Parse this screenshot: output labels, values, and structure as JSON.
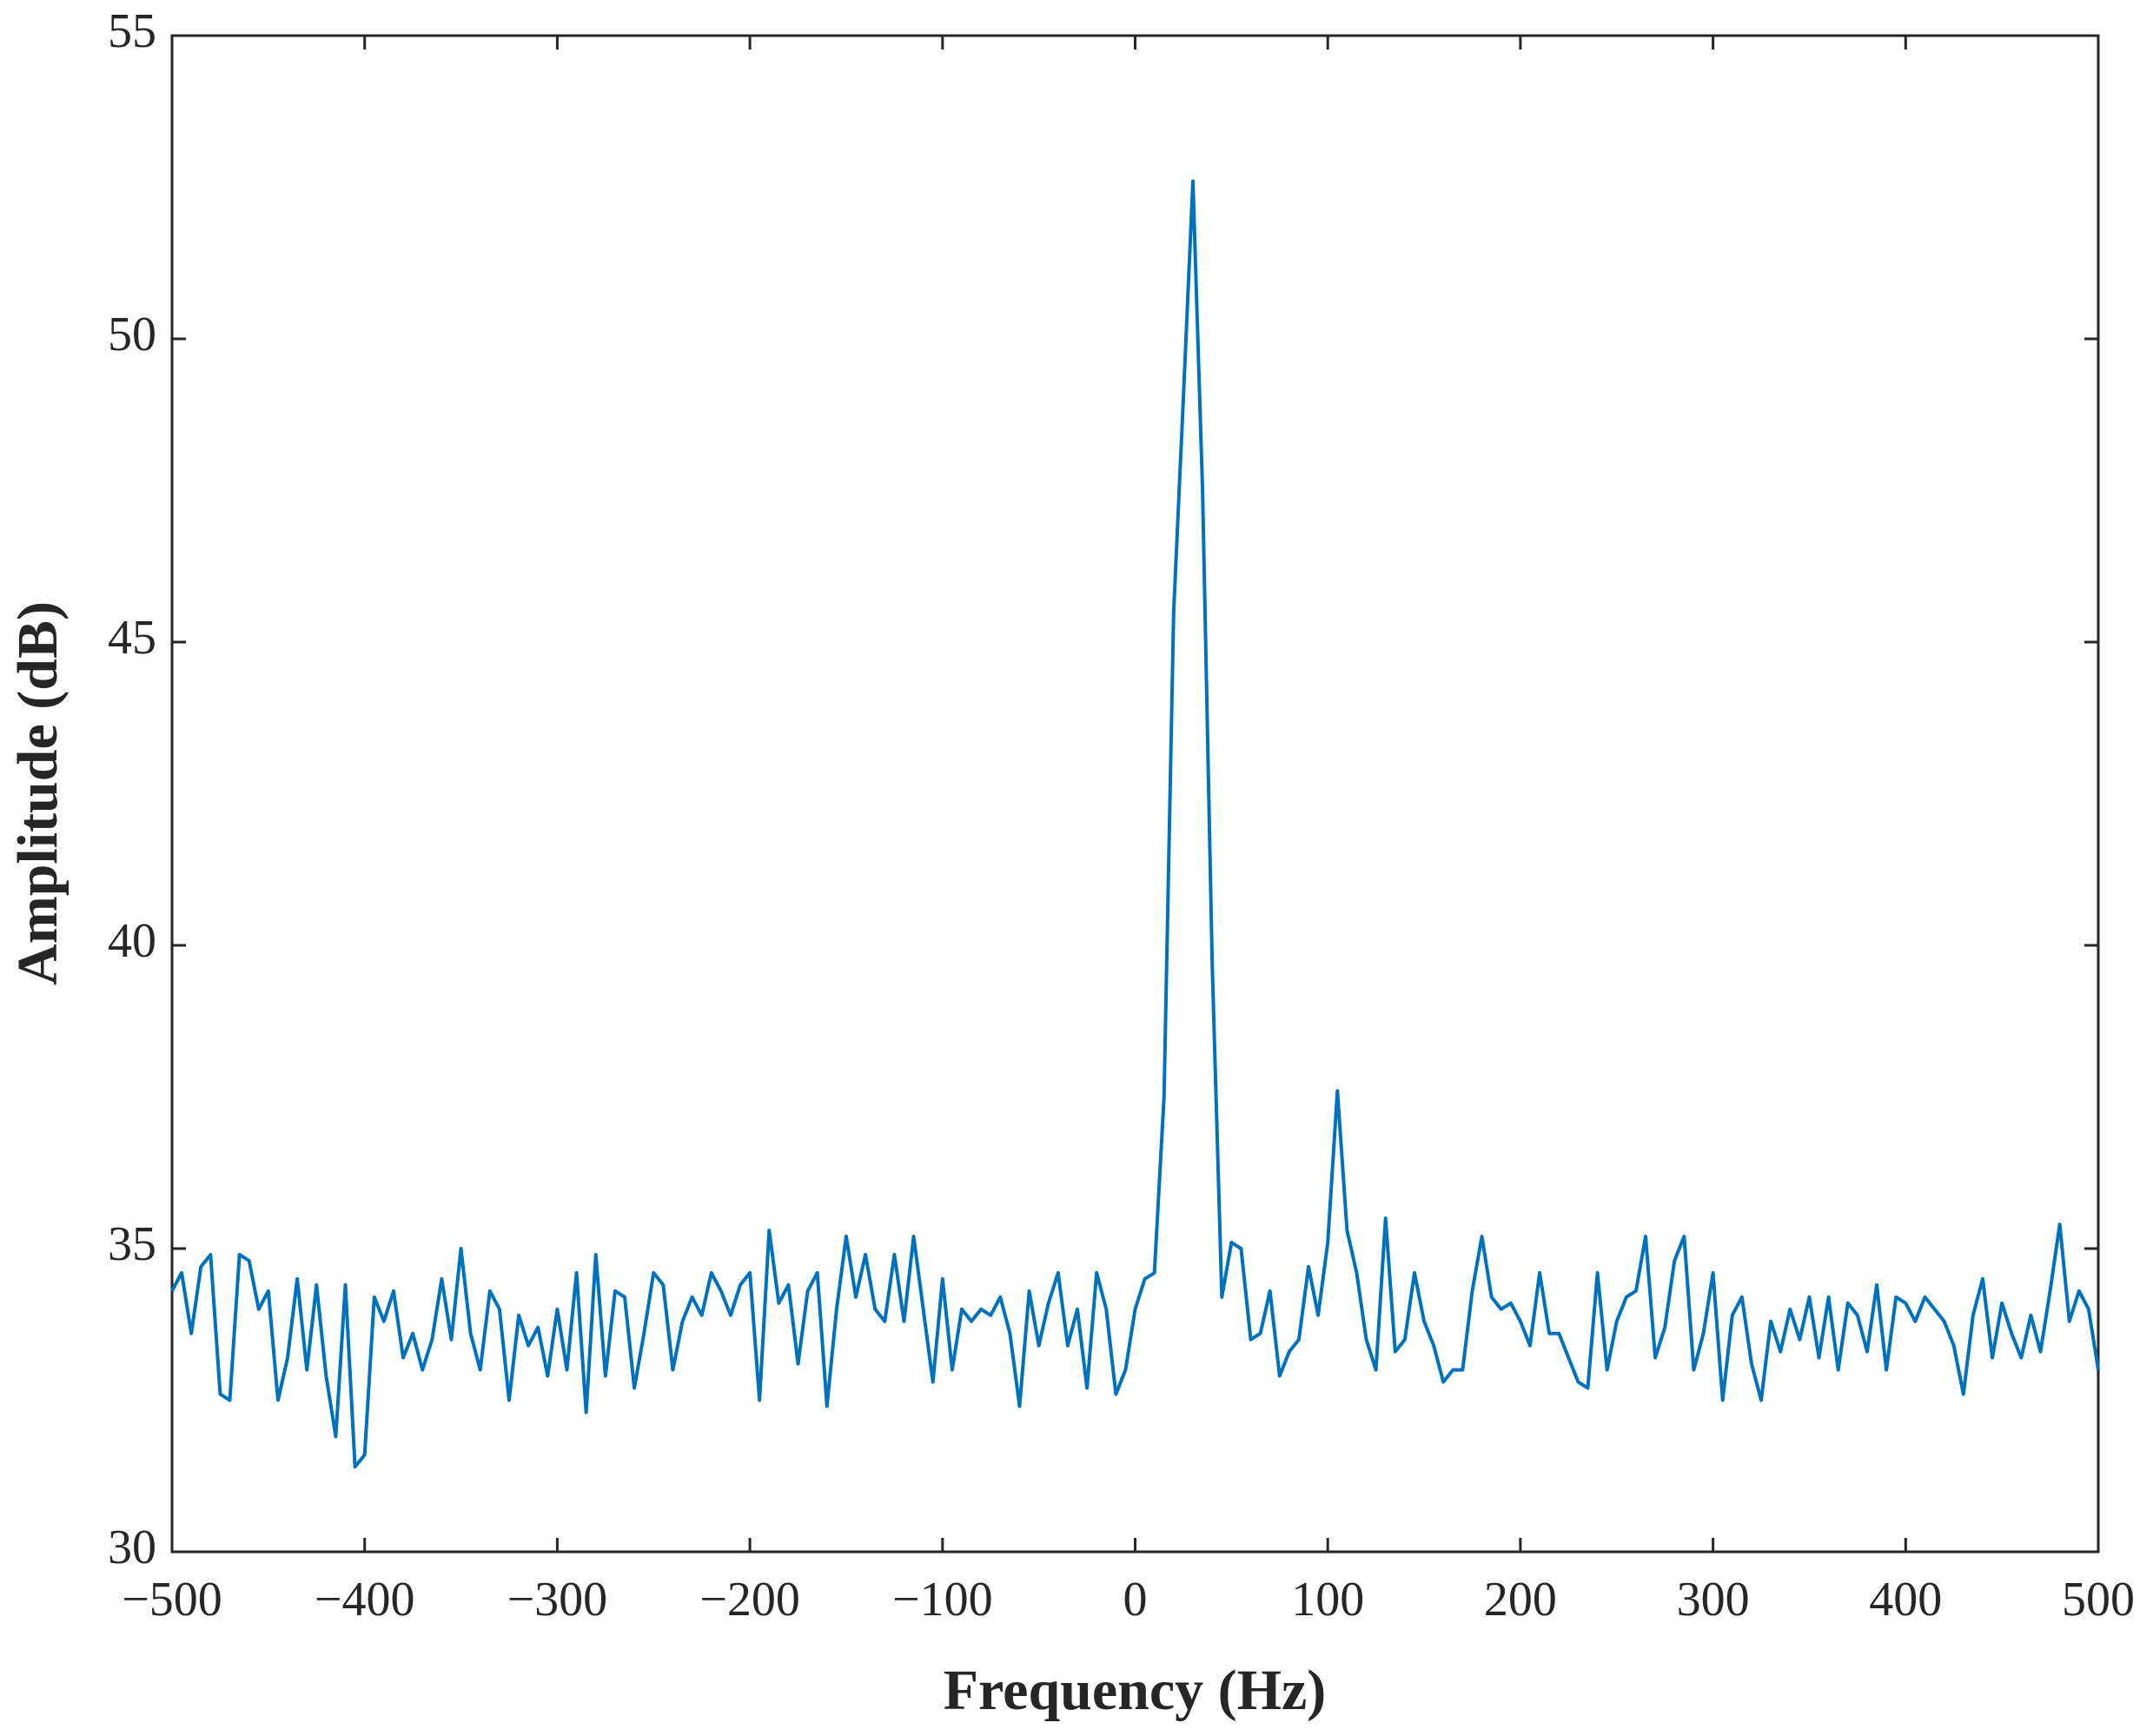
{
  "chart_data": {
    "type": "line",
    "xlabel": "Frequency (Hz)",
    "ylabel": "Amplitude (dB)",
    "xlim": [
      -500,
      500
    ],
    "ylim": [
      30,
      55
    ],
    "xticks": [
      {
        "value": -500,
        "label": "−500"
      },
      {
        "value": -400,
        "label": "−400"
      },
      {
        "value": -300,
        "label": "−300"
      },
      {
        "value": -200,
        "label": "−200"
      },
      {
        "value": -100,
        "label": "−100"
      },
      0,
      100,
      200,
      300,
      400,
      500
    ],
    "yticks": [
      30,
      35,
      40,
      45,
      50,
      55
    ],
    "grid": false,
    "x": [
      -500,
      -495,
      -490,
      -485,
      -480,
      -475,
      -470,
      -465,
      -460,
      -455,
      -450,
      -445,
      -440,
      -435,
      -430,
      -425,
      -420,
      -415,
      -410,
      -405,
      -400,
      -395,
      -390,
      -385,
      -380,
      -375,
      -370,
      -365,
      -360,
      -355,
      -350,
      -345,
      -340,
      -335,
      -330,
      -325,
      -320,
      -315,
      -310,
      -305,
      -300,
      -295,
      -290,
      -285,
      -280,
      -275,
      -270,
      -265,
      -260,
      -255,
      -250,
      -245,
      -240,
      -235,
      -230,
      -225,
      -220,
      -215,
      -210,
      -205,
      -200,
      -195,
      -190,
      -185,
      -180,
      -175,
      -170,
      -165,
      -160,
      -155,
      -150,
      -145,
      -140,
      -135,
      -130,
      -125,
      -120,
      -115,
      -110,
      -105,
      -100,
      -95,
      -90,
      -85,
      -80,
      -75,
      -70,
      -65,
      -60,
      -55,
      -50,
      -45,
      -40,
      -35,
      -30,
      -25,
      -20,
      -15,
      -10,
      -5,
      0,
      5,
      10,
      15,
      20,
      25,
      30,
      35,
      40,
      45,
      50,
      55,
      60,
      65,
      70,
      75,
      80,
      85,
      90,
      95,
      100,
      105,
      110,
      115,
      120,
      125,
      130,
      135,
      140,
      145,
      150,
      155,
      160,
      165,
      170,
      175,
      180,
      185,
      190,
      195,
      200,
      205,
      210,
      215,
      220,
      225,
      230,
      235,
      240,
      245,
      250,
      255,
      260,
      265,
      270,
      275,
      280,
      285,
      290,
      295,
      300,
      305,
      310,
      315,
      320,
      325,
      330,
      335,
      340,
      345,
      350,
      355,
      360,
      365,
      370,
      375,
      380,
      385,
      390,
      395,
      400,
      405,
      410,
      415,
      420,
      425,
      430,
      435,
      440,
      445,
      450,
      455,
      460,
      465,
      470,
      475,
      480,
      485,
      490,
      495,
      500
    ],
    "series": [
      {
        "color": "#0072bd",
        "values": [
          34.3,
          34.6,
          33.6,
          34.7,
          34.9,
          32.6,
          32.5,
          34.9,
          34.8,
          34.0,
          34.3,
          32.5,
          33.2,
          34.5,
          33.0,
          34.4,
          32.9,
          31.9,
          34.4,
          31.4,
          31.6,
          34.2,
          33.8,
          34.3,
          33.2,
          33.6,
          33.0,
          33.5,
          34.5,
          33.5,
          35.0,
          33.6,
          33.0,
          34.3,
          34.0,
          32.5,
          33.9,
          33.4,
          33.7,
          32.9,
          34.0,
          33.0,
          34.6,
          32.3,
          34.9,
          32.9,
          34.3,
          34.2,
          32.7,
          33.6,
          34.6,
          34.4,
          33.0,
          33.8,
          34.2,
          33.9,
          34.6,
          34.3,
          33.9,
          34.4,
          34.6,
          32.5,
          35.3,
          34.1,
          34.4,
          33.1,
          34.3,
          34.6,
          32.4,
          34.0,
          35.2,
          34.2,
          34.9,
          34.0,
          33.8,
          34.9,
          33.8,
          35.2,
          34.0,
          32.8,
          34.5,
          33.0,
          34.0,
          33.8,
          34.0,
          33.9,
          34.2,
          33.6,
          32.4,
          34.3,
          33.4,
          34.1,
          34.6,
          33.4,
          34.0,
          32.7,
          34.6,
          34.0,
          32.6,
          33.0,
          34.0,
          34.5,
          34.6,
          37.5,
          45.5,
          49.0,
          52.6,
          47.5,
          39.7,
          34.2,
          35.1,
          35.0,
          33.5,
          33.6,
          34.3,
          32.9,
          33.3,
          33.5,
          34.7,
          33.9,
          35.1,
          37.6,
          35.3,
          34.6,
          33.5,
          33.0,
          35.5,
          33.3,
          33.5,
          34.6,
          33.8,
          33.4,
          32.8,
          33.0,
          33.0,
          34.3,
          35.2,
          34.2,
          34.0,
          34.1,
          33.8,
          33.4,
          34.6,
          33.6,
          33.6,
          33.2,
          32.8,
          32.7,
          34.6,
          33.0,
          33.8,
          34.2,
          34.3,
          35.2,
          33.2,
          33.7,
          34.8,
          35.2,
          33.0,
          33.6,
          34.6,
          32.5,
          33.9,
          34.2,
          33.1,
          32.5,
          33.8,
          33.3,
          34.0,
          33.5,
          34.2,
          33.2,
          34.2,
          33.0,
          34.1,
          33.9,
          33.3,
          34.4,
          33.0,
          34.2,
          34.1,
          33.8,
          34.2,
          34.0,
          33.8,
          33.4,
          32.6,
          33.9,
          34.5,
          33.2,
          34.1,
          33.6,
          33.2,
          33.9,
          33.3,
          34.3,
          35.4,
          33.8,
          34.3,
          34.0,
          33.0
        ]
      }
    ]
  }
}
